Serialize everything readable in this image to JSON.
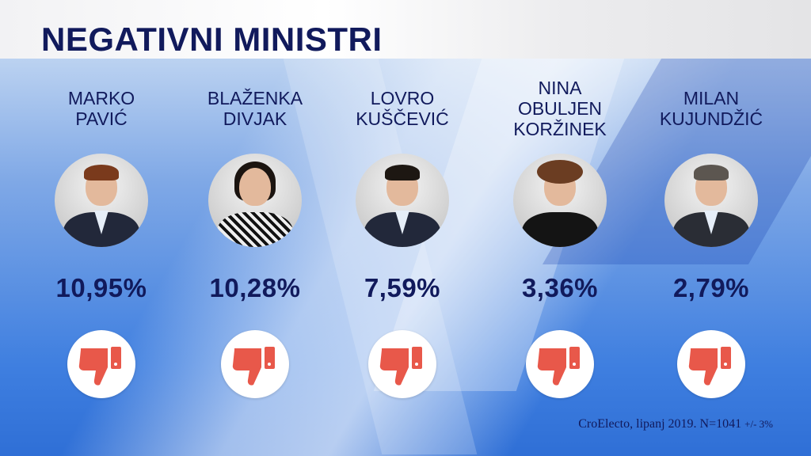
{
  "title": "NEGATIVNI MINISTRI",
  "ministers": [
    {
      "name_lines": [
        "MARKO",
        "PAVIĆ"
      ],
      "percent": "10,95%"
    },
    {
      "name_lines": [
        "BLAŽENKA",
        "DIVJAK"
      ],
      "percent": "10,28%"
    },
    {
      "name_lines": [
        "LOVRO",
        "KUŠČEVIĆ"
      ],
      "percent": "7,59%"
    },
    {
      "name_lines": [
        "NINA",
        "OBULJEN",
        "KORŽINEK"
      ],
      "percent": "3,36%"
    },
    {
      "name_lines": [
        "MILAN",
        "KUJUNDŽIĆ"
      ],
      "percent": "2,79%"
    }
  ],
  "icon": "thumbs-down-icon",
  "icon_color": "#e8584a",
  "title_color": "#111a5c",
  "source": {
    "main": "CroElecto, lipanj 2019. N=1041",
    "margin": "+/- 3%"
  }
}
